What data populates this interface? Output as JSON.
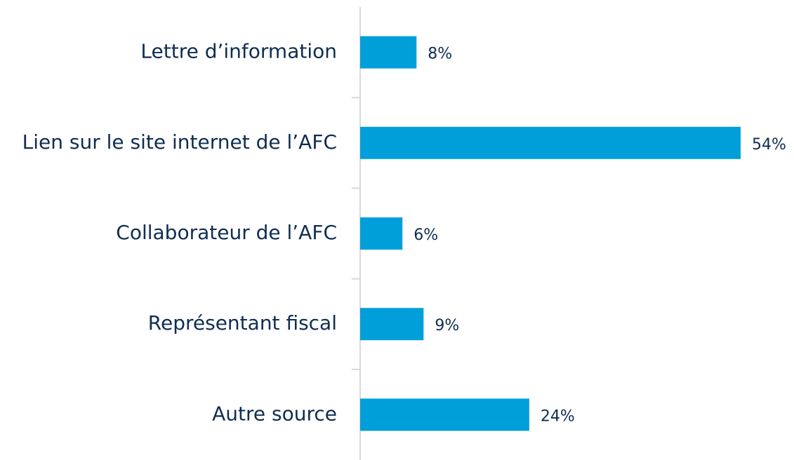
{
  "chart_data": {
    "type": "hbar",
    "categories": [
      "Lettre d’information",
      "Lien sur le site internet de l’AFC",
      "Collaborateur de l’AFC",
      "Représentant fiscal",
      "Autre source"
    ],
    "values": [
      8,
      54,
      6,
      9,
      24
    ],
    "value_labels": [
      "8%",
      "54%",
      "6%",
      "9%",
      "24%"
    ],
    "color": "#009fda"
  }
}
